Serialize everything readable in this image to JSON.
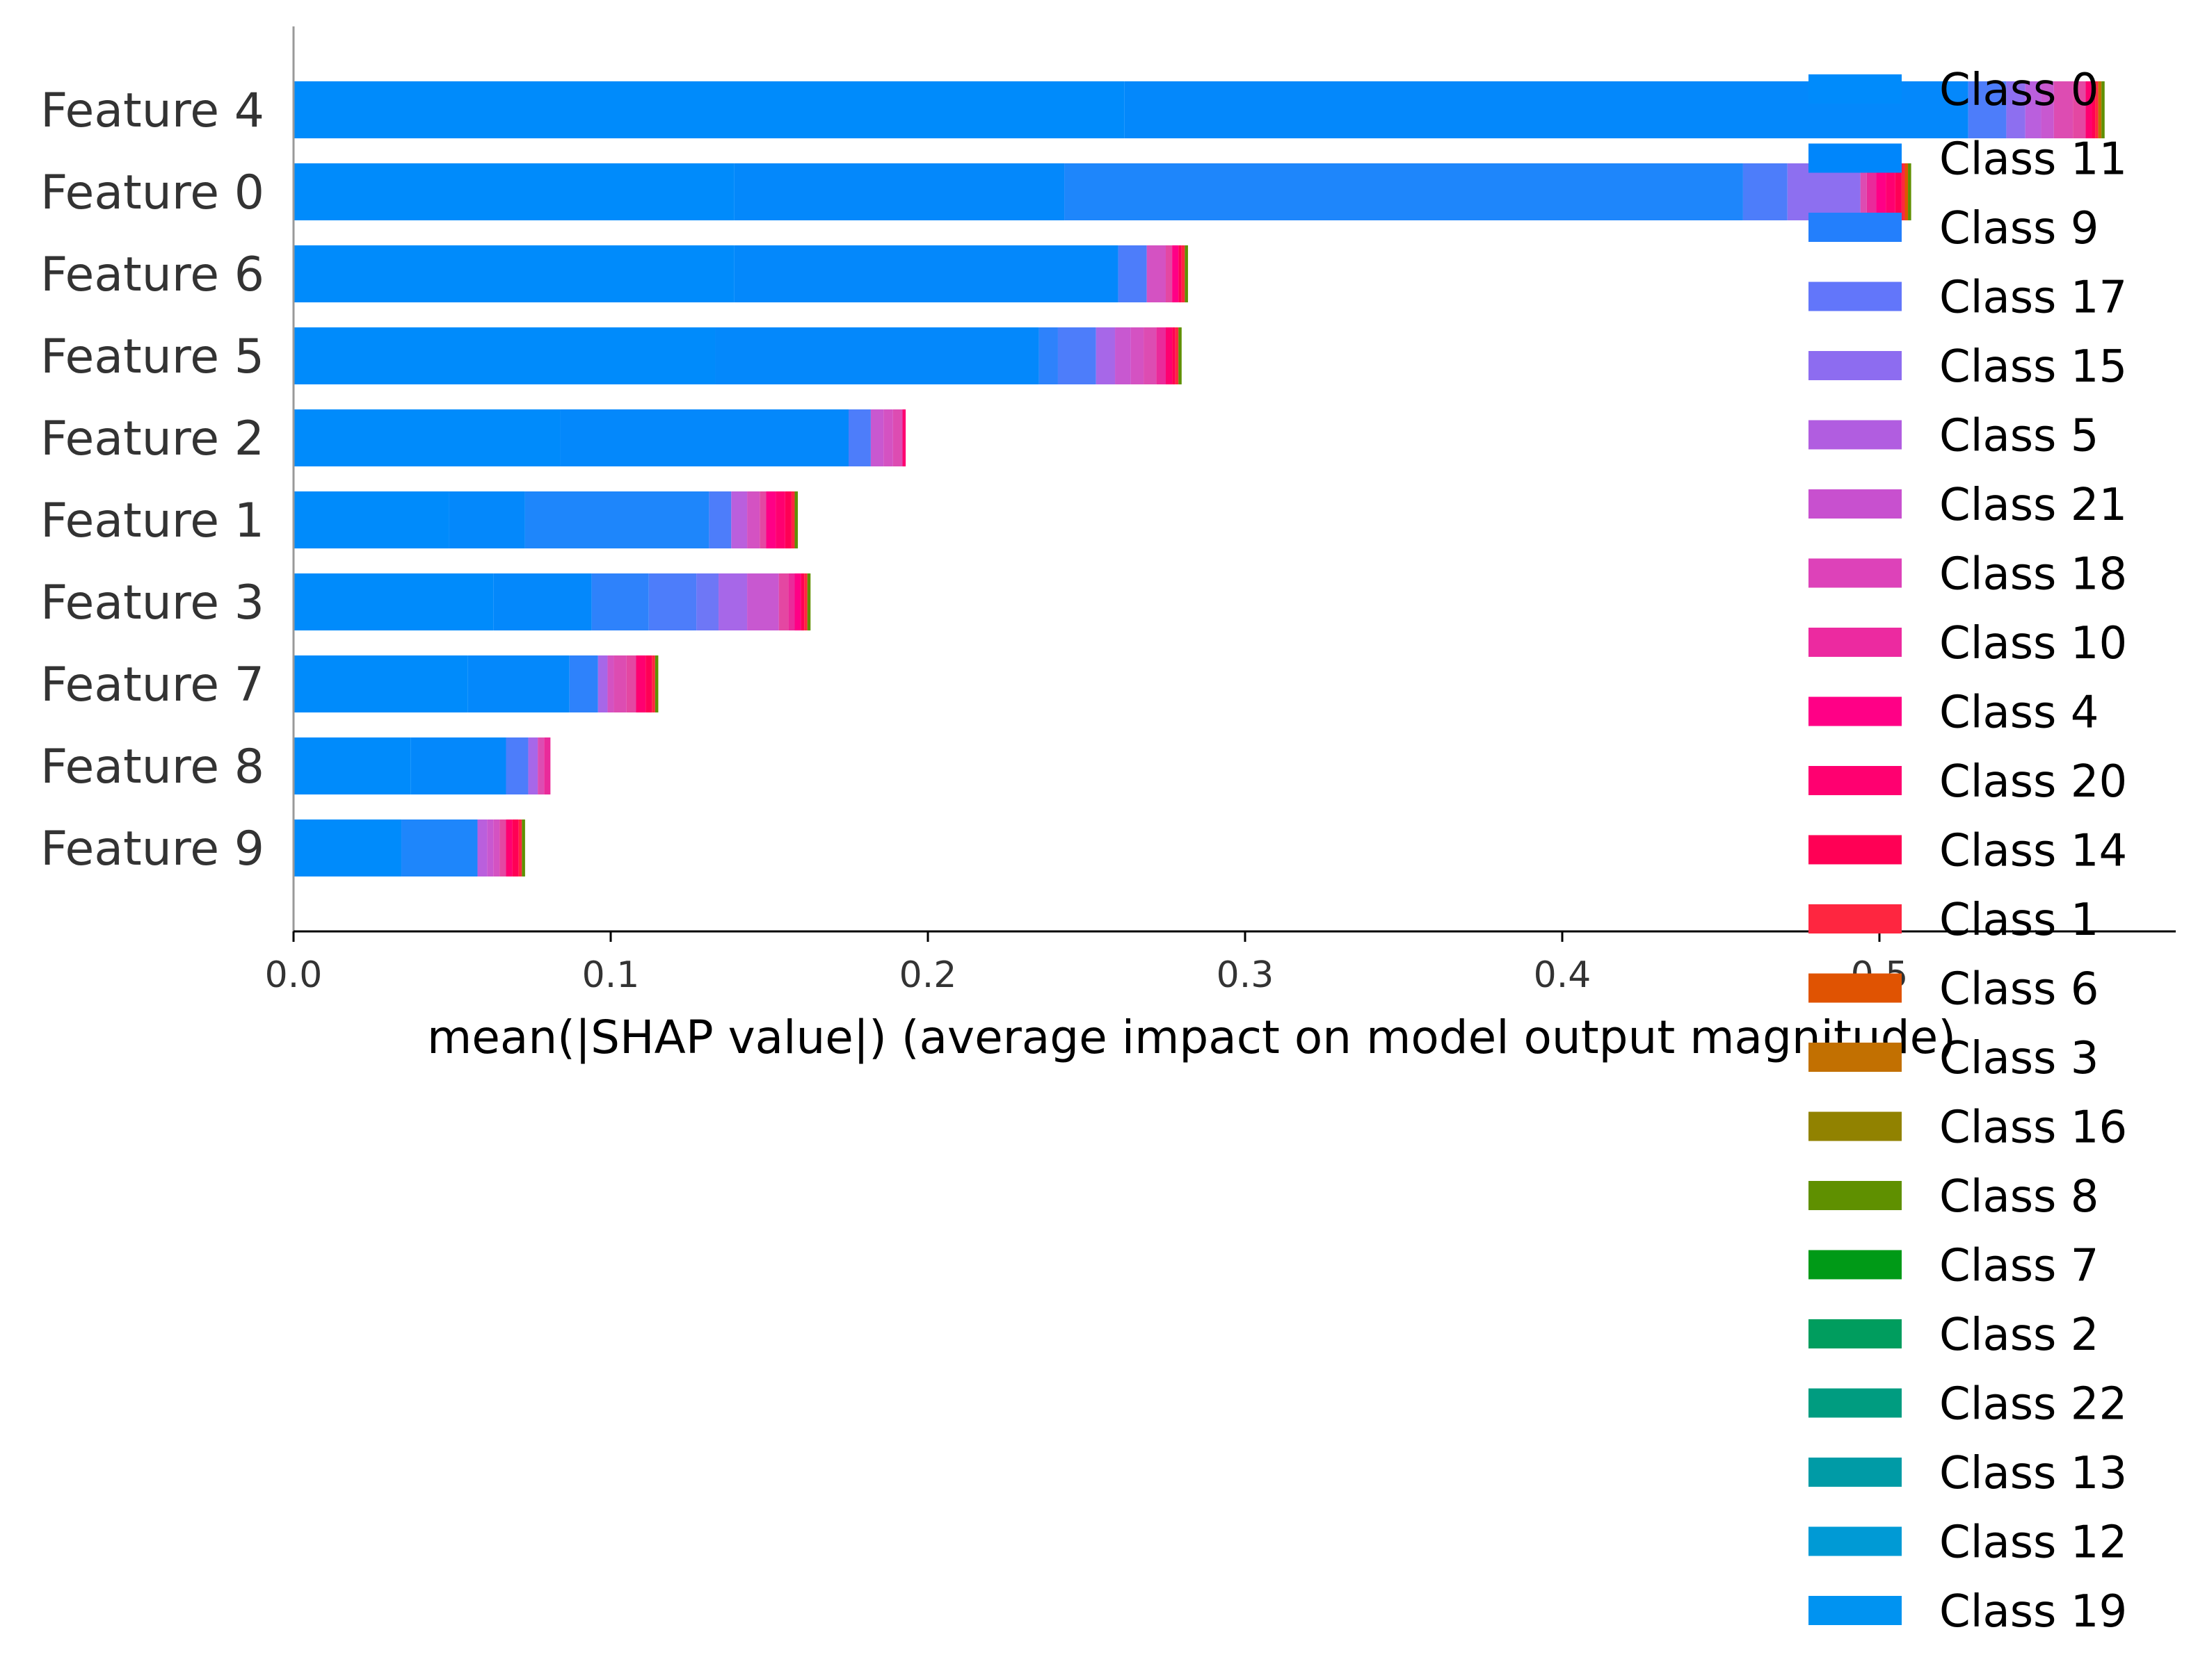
{
  "chart_data": {
    "type": "bar",
    "orientation": "horizontal",
    "stacked": true,
    "xlabel": "mean(|SHAP value|) (average impact on model output magnitude)",
    "xlim": [
      0,
      0.595
    ],
    "xticks": [
      "0.0",
      "0.1",
      "0.2",
      "0.3",
      "0.4",
      "0.5"
    ],
    "grid": false,
    "legend_position": "right",
    "categories": [
      "Feature 4",
      "Feature 0",
      "Feature 6",
      "Feature 5",
      "Feature 2",
      "Feature 1",
      "Feature 3",
      "Feature 7",
      "Feature 8",
      "Feature 9"
    ],
    "series": [
      {
        "name": "Class 0",
        "color": "#008bfb",
        "values": [
          0.262,
          0.139,
          0.139,
          0.133,
          0.084,
          0.049,
          0.063,
          0.055,
          0.037,
          0.034
        ]
      },
      {
        "name": "Class 11",
        "color": "#0488fb",
        "values": [
          0.266,
          0.104,
          0.121,
          0.102,
          0.091,
          0.024,
          0.031,
          0.032,
          0.03,
          0.0
        ]
      },
      {
        "name": "Class 9",
        "color": "#1e86fb",
        "values": [
          0.0,
          0.214,
          0.0,
          0.0,
          0.0,
          0.058,
          0.0,
          0.0,
          0.0,
          0.024
        ]
      },
      {
        "name": "Class 17",
        "color": "#2e82fb",
        "values": [
          0.0,
          0.0,
          0.0,
          0.006,
          0.0,
          0.0,
          0.018,
          0.009,
          0.0,
          0.0
        ]
      },
      {
        "name": "Class 15",
        "color": "#4d7dfa",
        "values": [
          0.012,
          0.014,
          0.009,
          0.012,
          0.007,
          0.007,
          0.015,
          0.0,
          0.007,
          0.0
        ]
      },
      {
        "name": "Class 5",
        "color": "#6e77f6",
        "values": [
          0.0,
          0.0,
          0.0,
          0.0,
          0.0,
          0.0,
          0.007,
          0.0,
          0.0,
          0.0
        ]
      },
      {
        "name": "Class 21",
        "color": "#8d6ff0",
        "values": [
          0.006,
          0.023,
          0.0,
          0.0,
          0.0,
          0.0,
          0.0,
          0.0,
          0.0,
          0.0
        ]
      },
      {
        "name": "Class 18",
        "color": "#a767e8",
        "values": [
          0.0,
          0.0,
          0.0,
          0.006,
          0.0,
          0.0,
          0.009,
          0.003,
          0.003,
          0.0
        ]
      },
      {
        "name": "Class 10",
        "color": "#ba5fdd",
        "values": [
          0.005,
          0.0,
          0.0,
          0.0,
          0.0,
          0.005,
          0.0,
          0.0,
          0.0,
          0.003
        ]
      },
      {
        "name": "Class 4",
        "color": "#c858d0",
        "values": [
          0.004,
          0.0,
          0.0,
          0.005,
          0.004,
          0.0,
          0.01,
          0.0,
          0.0,
          0.002
        ]
      },
      {
        "name": "Class 20",
        "color": "#d452c2",
        "values": [
          0.0,
          0.0,
          0.006,
          0.004,
          0.003,
          0.004,
          0.0,
          0.002,
          0.0,
          0.002
        ]
      },
      {
        "name": "Class 14",
        "color": "#dd4cb2",
        "values": [
          0.006,
          0.002,
          0.0,
          0.004,
          0.003,
          0.0,
          0.0,
          0.004,
          0.002,
          0.0
        ]
      },
      {
        "name": "Class 1",
        "color": "#e447a2",
        "values": [
          0.004,
          0.0,
          0.002,
          0.0,
          0.0,
          0.002,
          0.003,
          0.003,
          0.0,
          0.002
        ]
      },
      {
        "name": "Class 6",
        "color": "#ea2a9a",
        "values": [
          0.0,
          0.003,
          0.0,
          0.003,
          0.0,
          0.0,
          0.002,
          0.0,
          0.002,
          0.0
        ]
      },
      {
        "name": "Class 3",
        "color": "#ff0086",
        "values": [
          0.0,
          0.003,
          0.002,
          0.0,
          0.0,
          0.003,
          0.002,
          0.0,
          0.0,
          0.0
        ]
      },
      {
        "name": "Class 16",
        "color": "#ff0070",
        "values": [
          0.002,
          0.003,
          0.0,
          0.002,
          0.001,
          0.003,
          0.0,
          0.003,
          0.0,
          0.002
        ]
      },
      {
        "name": "Class 8",
        "color": "#ff0055",
        "values": [
          0.001,
          0.002,
          0.001,
          0.001,
          0.0,
          0.002,
          0.001,
          0.002,
          0.0,
          0.002
        ]
      },
      {
        "name": "Class 7",
        "color": "#fe2640",
        "values": [
          0.001,
          0.001,
          0.001,
          0.001,
          0.0,
          0.001,
          0.001,
          0.001,
          0.0,
          0.001
        ]
      },
      {
        "name": "Class 2",
        "color": "#e05302",
        "values": [
          0.0,
          0.001,
          0.0,
          0.0,
          0.0,
          0.0,
          0.0,
          0.0,
          0.0,
          0.0
        ]
      },
      {
        "name": "Class 22",
        "color": "#c27001",
        "values": [
          0.001,
          0.0,
          0.0,
          0.0,
          0.0,
          0.0,
          0.0,
          0.0,
          0.0,
          0.0
        ]
      },
      {
        "name": "Class 13",
        "color": "#998300",
        "values": [
          0.0,
          0.0,
          0.0,
          0.0,
          0.0,
          0.0,
          0.0,
          0.0,
          0.0,
          0.0
        ]
      },
      {
        "name": "Class 12",
        "color": "#5f9000",
        "values": [
          0.001,
          0.001,
          0.001,
          0.001,
          0.0,
          0.001,
          0.001,
          0.001,
          0.0,
          0.001
        ]
      },
      {
        "name": "Class 19",
        "color": "#009a17",
        "values": [
          0.0,
          0.0,
          0.0,
          0.0,
          0.0,
          0.0,
          0.0,
          0.0,
          0.0,
          0.0
        ]
      }
    ],
    "legend": [
      {
        "name": "Class 0",
        "color": "#008bfb"
      },
      {
        "name": "Class 11",
        "color": "#0086fb"
      },
      {
        "name": "Class 9",
        "color": "#237ffc"
      },
      {
        "name": "Class 17",
        "color": "#6276fa"
      },
      {
        "name": "Class 15",
        "color": "#8d6cf0"
      },
      {
        "name": "Class 5",
        "color": "#b15de0"
      },
      {
        "name": "Class 21",
        "color": "#c850cf"
      },
      {
        "name": "Class 18",
        "color": "#dd42b9"
      },
      {
        "name": "Class 10",
        "color": "#ec2aa0"
      },
      {
        "name": "Class 4",
        "color": "#ff0086"
      },
      {
        "name": "Class 20",
        "color": "#ff0070"
      },
      {
        "name": "Class 14",
        "color": "#ff0055"
      },
      {
        "name": "Class 1",
        "color": "#fe2640"
      },
      {
        "name": "Class 6",
        "color": "#e05302"
      },
      {
        "name": "Class 3",
        "color": "#c27001"
      },
      {
        "name": "Class 16",
        "color": "#918200"
      },
      {
        "name": "Class 8",
        "color": "#5f9000"
      },
      {
        "name": "Class 7",
        "color": "#009a17"
      },
      {
        "name": "Class 2",
        "color": "#009d5e"
      },
      {
        "name": "Class 22",
        "color": "#009c80"
      },
      {
        "name": "Class 13",
        "color": "#009ba6"
      },
      {
        "name": "Class 12",
        "color": "#009ad5"
      },
      {
        "name": "Class 19",
        "color": "#0093f1"
      }
    ]
  }
}
